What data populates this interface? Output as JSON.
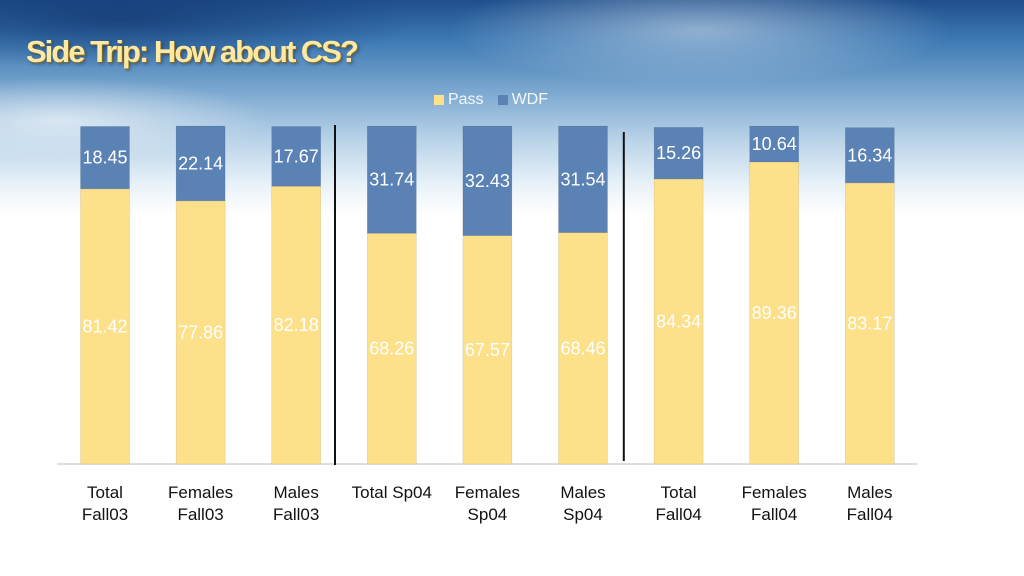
{
  "slide": {
    "title": "Side Trip: How about CS?"
  },
  "chart_data": {
    "type": "bar",
    "stacked": true,
    "categories": [
      "Total Fall03",
      "Females Fall03",
      "Males Fall03",
      "Total Sp04",
      "Females Sp04",
      "Males Sp04",
      "Total Fall04",
      "Females Fall04",
      "Males Fall04"
    ],
    "category_lines": [
      [
        "Total",
        "Fall03"
      ],
      [
        "Females",
        "Fall03"
      ],
      [
        "Males",
        "Fall03"
      ],
      [
        "Total Sp04",
        ""
      ],
      [
        "Females",
        "Sp04"
      ],
      [
        "Males",
        "Sp04"
      ],
      [
        "Total",
        "Fall04"
      ],
      [
        "Females",
        "Fall04"
      ],
      [
        "Males",
        "Fall04"
      ]
    ],
    "series": [
      {
        "name": "Pass",
        "color": "#fde08a",
        "label_color": "#ffffff",
        "values": [
          81.42,
          77.86,
          82.18,
          68.26,
          67.57,
          68.46,
          84.34,
          89.36,
          83.17
        ]
      },
      {
        "name": "WDF",
        "color": "#5a82b4",
        "label_color": "#ffffff",
        "values": [
          18.45,
          22.14,
          17.67,
          31.74,
          32.43,
          31.54,
          15.26,
          10.64,
          16.34
        ]
      }
    ],
    "ylim": [
      0,
      100
    ],
    "legend_position": "top",
    "group_separators_after": [
      2,
      5
    ],
    "grid": false
  }
}
